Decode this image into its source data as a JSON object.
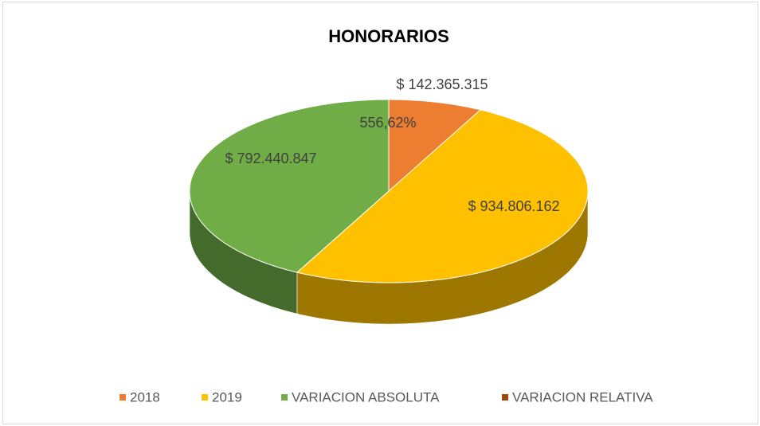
{
  "chart_data": {
    "type": "pie",
    "title": "HONORARIOS",
    "categories": [
      "2018",
      "2019",
      "VARIACION ABSOLUTA",
      "VARIACION RELATIVA"
    ],
    "values": [
      142365315,
      934806162,
      792440847,
      556.62
    ],
    "value_labels": [
      "$ 142.365.315",
      "$ 934.806.162",
      "$ 792.440.847",
      "556,62%"
    ],
    "colors": [
      "#ED7D31",
      "#FFC000",
      "#70AD47",
      "#9E480E"
    ],
    "legend": "bottom"
  }
}
